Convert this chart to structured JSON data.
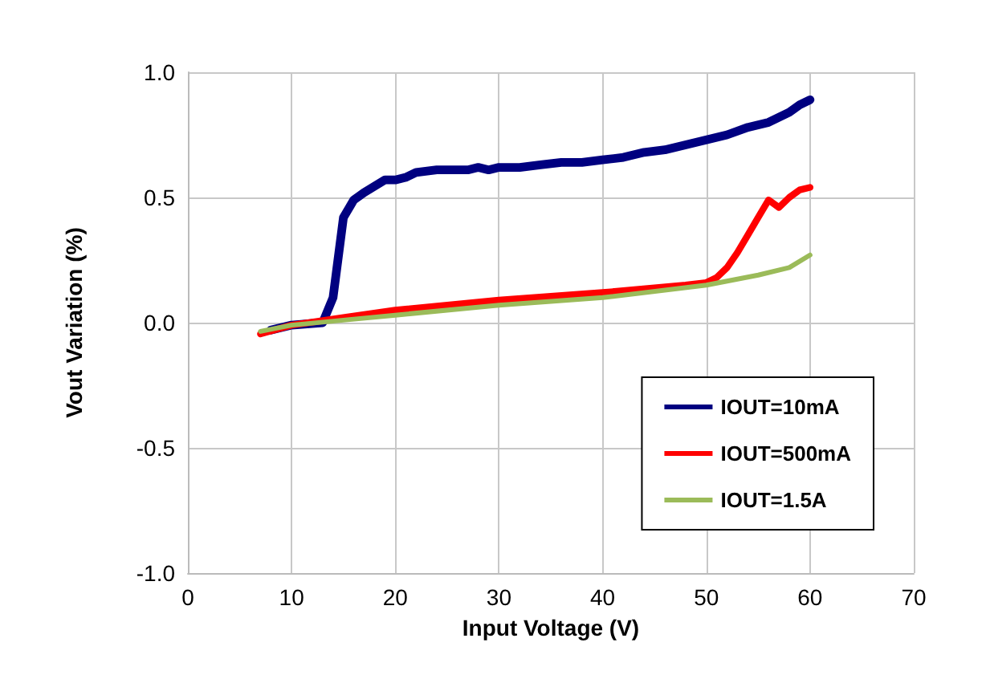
{
  "chart_data": {
    "type": "line",
    "xlabel": "Input Voltage (V)",
    "ylabel": "Vout Variation (%)",
    "xlim": [
      0,
      70
    ],
    "xticks": [
      0,
      10,
      20,
      30,
      40,
      50,
      60,
      70
    ],
    "ylim": [
      -1,
      1
    ],
    "yticks": [
      {
        "value": -1,
        "label": "-1.0"
      },
      {
        "value": -0.5,
        "label": "-0.5"
      },
      {
        "value": 0,
        "label": "0.0"
      },
      {
        "value": 0.5,
        "label": "0.5"
      },
      {
        "value": 1,
        "label": "1.0"
      }
    ],
    "grid": true,
    "legend": "bottom right",
    "marker": "none",
    "line_style": "solid",
    "series": [
      {
        "name": "IOUT=10mA",
        "color": "#000080",
        "x": [
          8,
          10,
          13,
          14,
          15,
          16,
          17,
          19,
          20,
          21,
          22,
          24,
          27,
          28,
          29,
          30,
          32,
          34,
          36,
          37,
          38,
          40,
          42,
          44,
          46,
          48,
          50,
          52,
          54,
          56,
          58,
          59,
          60
        ],
        "values": [
          -0.03,
          -0.01,
          0.0,
          0.1,
          0.42,
          0.49,
          0.52,
          0.57,
          0.57,
          0.58,
          0.6,
          0.61,
          0.61,
          0.62,
          0.61,
          0.62,
          0.62,
          0.63,
          0.64,
          0.64,
          0.64,
          0.65,
          0.66,
          0.68,
          0.69,
          0.71,
          0.73,
          0.75,
          0.78,
          0.8,
          0.84,
          0.87,
          0.89
        ]
      },
      {
        "name": "IOUT=500mA",
        "color": "#ff0000",
        "x": [
          7,
          10,
          15,
          20,
          30,
          40,
          48,
          50,
          51,
          52,
          53,
          54,
          55,
          56,
          57,
          58,
          59,
          60
        ],
        "values": [
          -0.045,
          -0.01,
          0.02,
          0.05,
          0.09,
          0.12,
          0.15,
          0.16,
          0.18,
          0.22,
          0.28,
          0.35,
          0.42,
          0.49,
          0.46,
          0.5,
          0.53,
          0.54
        ]
      },
      {
        "name": "IOUT=1.5A",
        "color": "#9bbb59",
        "x": [
          7,
          10,
          15,
          20,
          30,
          40,
          50,
          55,
          58,
          60
        ],
        "values": [
          -0.035,
          -0.01,
          0.01,
          0.03,
          0.07,
          0.1,
          0.15,
          0.19,
          0.22,
          0.27
        ]
      }
    ]
  }
}
